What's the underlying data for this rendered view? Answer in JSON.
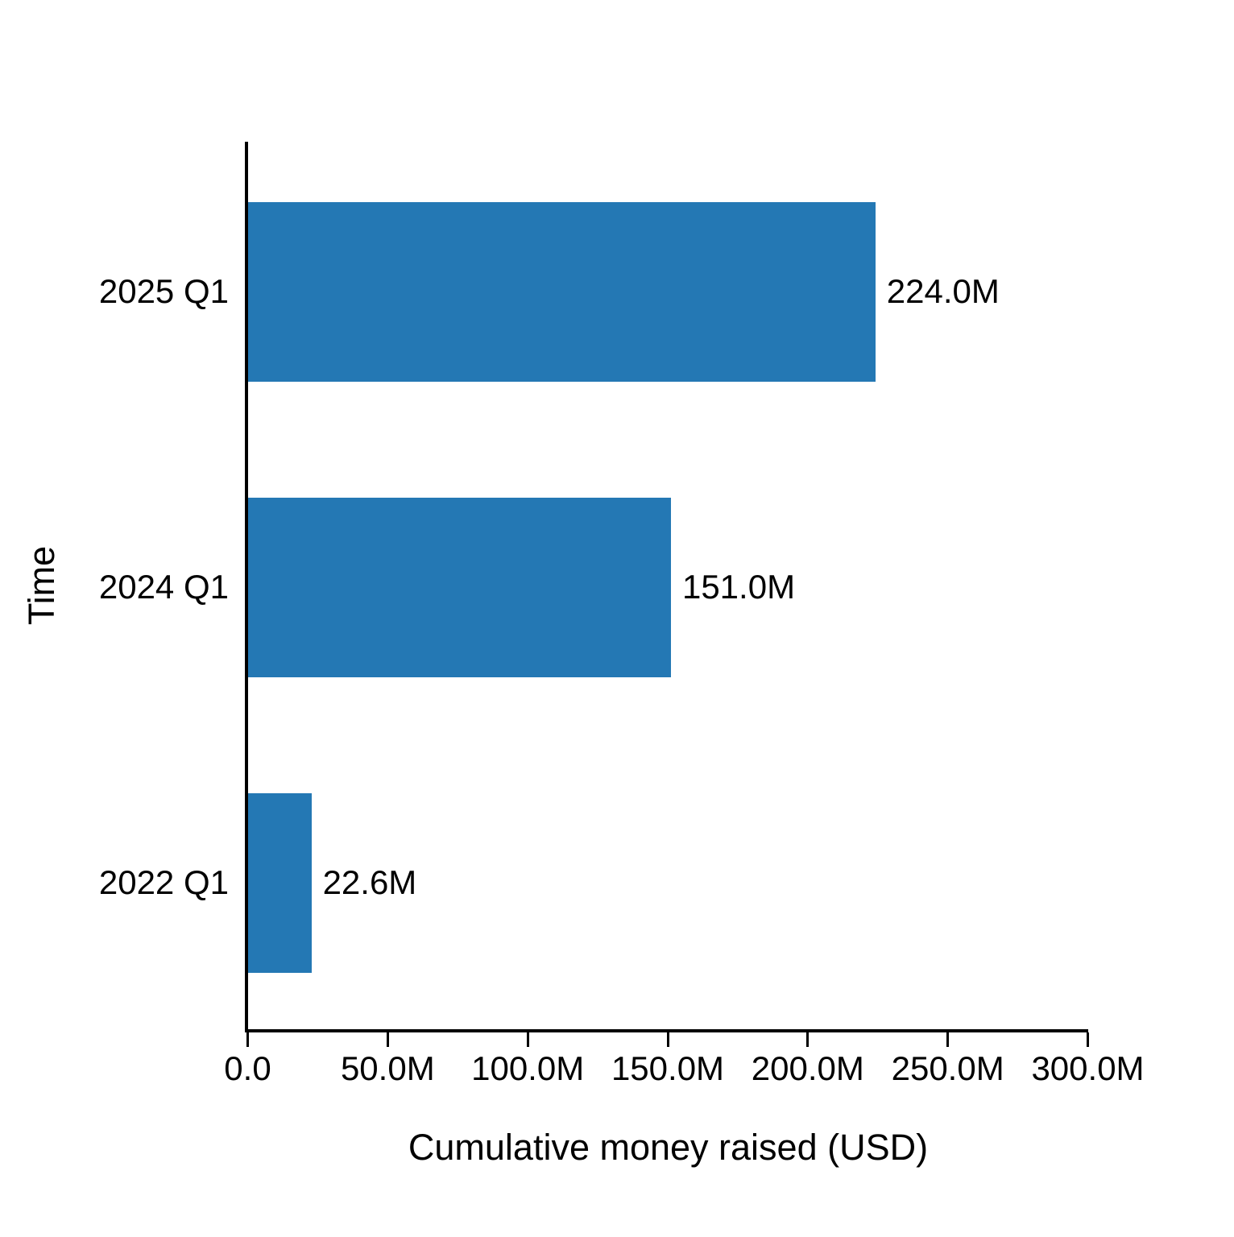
{
  "chart_data": {
    "type": "bar",
    "orientation": "horizontal",
    "title": "",
    "xlabel": "Cumulative money raised (USD)",
    "ylabel": "Time",
    "categories": [
      "2025 Q1",
      "2024 Q1",
      "2022 Q1"
    ],
    "values": [
      224000000,
      151000000,
      22600000
    ],
    "value_labels": [
      "224.0M",
      "151.0M",
      "22.6M"
    ],
    "xlim": [
      0,
      300000000
    ],
    "x_tick_values": [
      0,
      50000000,
      100000000,
      150000000,
      200000000,
      250000000,
      300000000
    ],
    "x_tick_labels": [
      "0.0",
      "50.0M",
      "100.0M",
      "150.0M",
      "200.0M",
      "250.0M",
      "300.0M"
    ],
    "bar_color": "#2478b4",
    "axis_color": "#000000",
    "text_color": "#000000",
    "background": "#ffffff",
    "grid": false,
    "legend_position": "none"
  }
}
